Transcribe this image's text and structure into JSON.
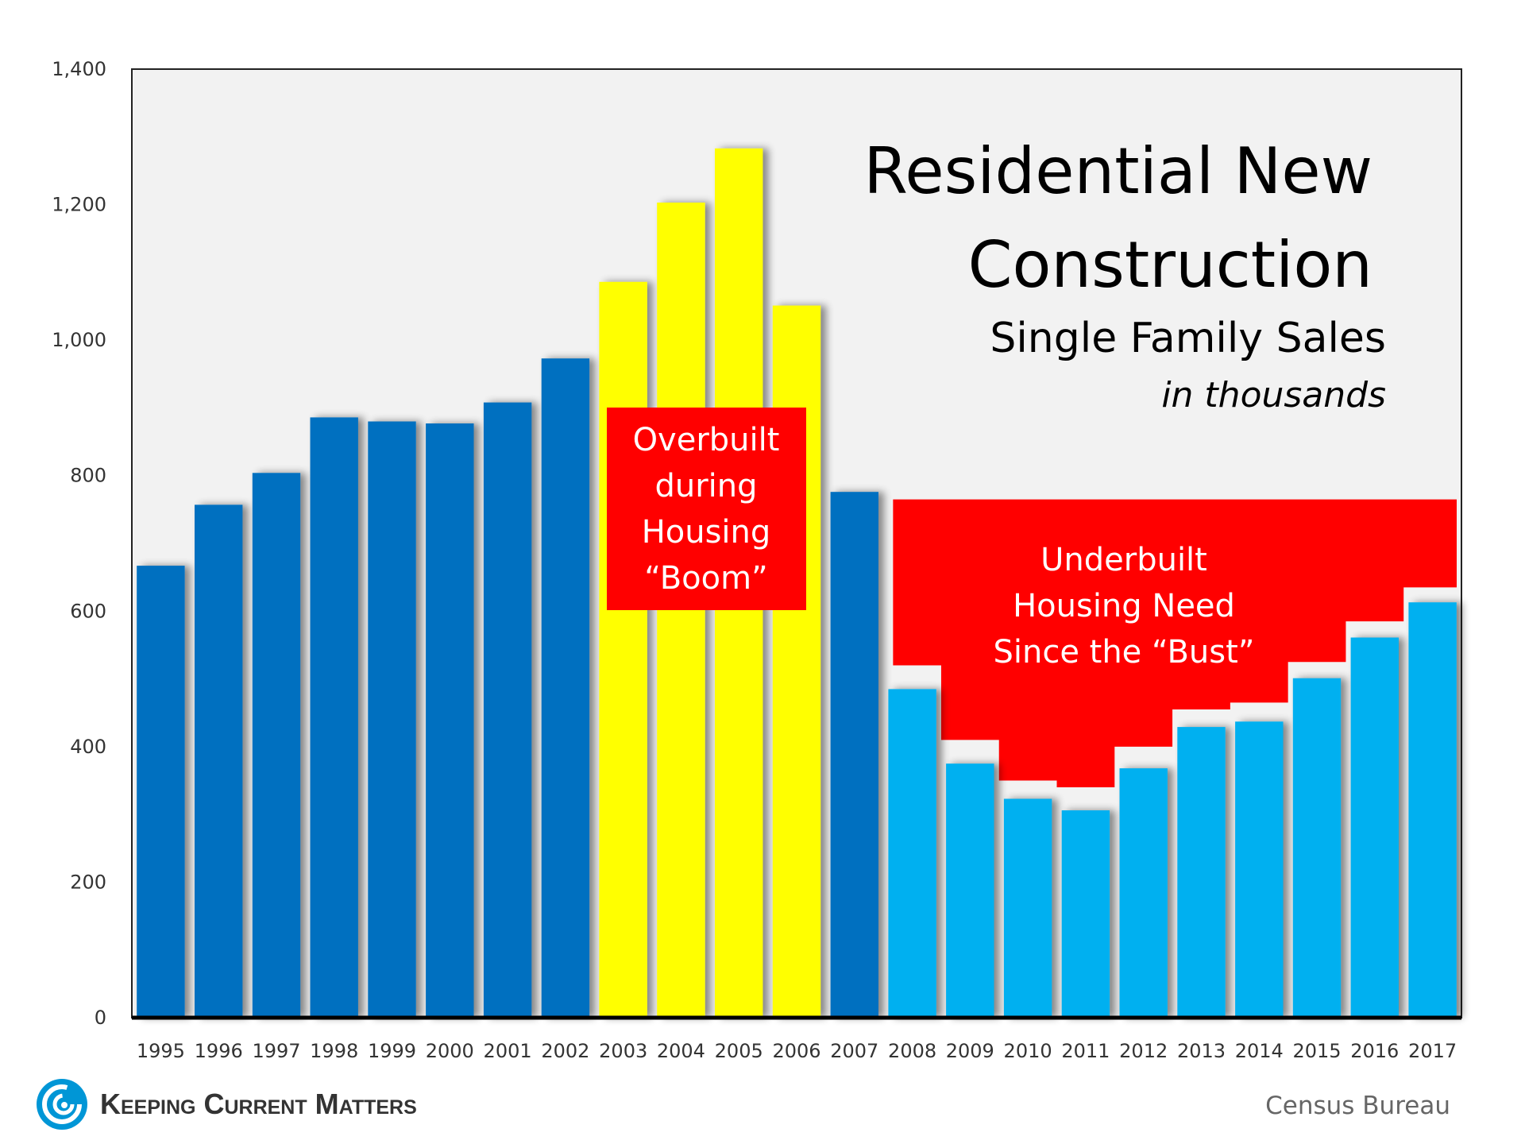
{
  "chart_data": {
    "type": "bar",
    "title": "Residential New",
    "title_line2": "Construction",
    "subtitle": "Single Family Sales",
    "units_note": "in thousands",
    "ylim": [
      0,
      1400
    ],
    "yticks": [
      0,
      200,
      400,
      600,
      800,
      1000,
      1200,
      1400
    ],
    "ytick_labels": [
      "0",
      "200",
      "400",
      "600",
      "800",
      "1,000",
      "1,200",
      "1,400"
    ],
    "categories": [
      "1995",
      "1996",
      "1997",
      "1998",
      "1999",
      "2000",
      "2001",
      "2002",
      "2003",
      "2004",
      "2005",
      "2006",
      "2007",
      "2008",
      "2009",
      "2010",
      "2011",
      "2012",
      "2013",
      "2014",
      "2015",
      "2016",
      "2017"
    ],
    "values": [
      667,
      757,
      804,
      886,
      880,
      877,
      908,
      973,
      1086,
      1203,
      1283,
      1051,
      776,
      485,
      375,
      323,
      306,
      368,
      429,
      437,
      501,
      561,
      613
    ],
    "bar_groups": [
      "normal",
      "normal",
      "normal",
      "normal",
      "normal",
      "normal",
      "normal",
      "normal",
      "boom",
      "boom",
      "boom",
      "boom",
      "normal",
      "post",
      "post",
      "post",
      "post",
      "post",
      "post",
      "post",
      "post",
      "post",
      "post"
    ],
    "colors": {
      "normal": "#0070c0",
      "boom": "#ffff00",
      "post": "#00b0f0",
      "annotation": "#ff0000",
      "plot_bg": "#f2f2f2"
    },
    "underbuilt_top": 765,
    "underbuilt_steps": [
      520,
      410,
      350,
      340,
      400,
      455,
      465,
      525,
      585,
      635
    ],
    "annotations": [
      {
        "name": "overbuilt",
        "lines": [
          "Overbuilt",
          "during",
          "Housing",
          "“Boom”"
        ]
      },
      {
        "name": "underbuilt",
        "lines": [
          "Underbuilt",
          "Housing Need",
          "Since the “Bust”"
        ]
      }
    ]
  },
  "footer": {
    "brand": "Keeping Current Matters",
    "source": "Census Bureau"
  }
}
